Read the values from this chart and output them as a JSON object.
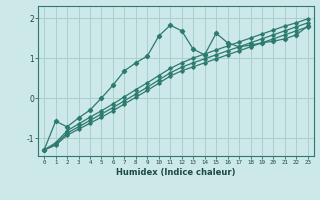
{
  "title": "",
  "xlabel": "Humidex (Indice chaleur)",
  "bg_color": "#cce8e8",
  "line_color": "#2d7a6e",
  "grid_color": "#aad0cc",
  "xlim": [
    -0.5,
    23.5
  ],
  "ylim": [
    -1.45,
    2.3
  ],
  "xticks": [
    0,
    1,
    2,
    3,
    4,
    5,
    6,
    7,
    8,
    9,
    10,
    11,
    12,
    13,
    14,
    15,
    16,
    17,
    18,
    19,
    20,
    21,
    22,
    23
  ],
  "yticks": [
    -1,
    0,
    1,
    2
  ],
  "curve1_x": [
    0,
    1,
    2,
    3,
    4,
    5,
    6,
    7,
    8,
    9,
    10,
    11,
    12,
    13,
    14,
    15,
    16,
    17,
    18,
    19,
    20,
    21,
    22,
    23
  ],
  "curve1_y": [
    -1.3,
    -0.58,
    -0.72,
    -0.5,
    -0.3,
    -0.0,
    0.32,
    0.68,
    0.88,
    1.05,
    1.55,
    1.82,
    1.68,
    1.22,
    1.08,
    1.62,
    1.38,
    1.28,
    1.32,
    1.38,
    1.42,
    1.48,
    1.58,
    1.8
  ],
  "curve2_x": [
    0,
    1,
    2,
    3,
    4,
    5,
    6,
    7,
    8,
    9,
    10,
    11,
    12,
    13,
    14,
    15,
    16,
    17,
    18,
    19,
    20,
    21,
    22,
    23
  ],
  "curve2_y": [
    -1.3,
    -1.12,
    -0.82,
    -0.65,
    -0.48,
    -0.32,
    -0.15,
    0.03,
    0.21,
    0.38,
    0.56,
    0.74,
    0.88,
    1.0,
    1.1,
    1.2,
    1.3,
    1.4,
    1.5,
    1.6,
    1.7,
    1.8,
    1.88,
    1.98
  ],
  "curve3_x": [
    0,
    1,
    2,
    3,
    4,
    5,
    6,
    7,
    8,
    9,
    10,
    11,
    12,
    13,
    14,
    15,
    16,
    17,
    18,
    19,
    20,
    21,
    22,
    23
  ],
  "curve3_y": [
    -1.3,
    -1.15,
    -0.88,
    -0.72,
    -0.56,
    -0.4,
    -0.24,
    -0.07,
    0.1,
    0.27,
    0.45,
    0.63,
    0.77,
    0.88,
    0.98,
    1.08,
    1.18,
    1.28,
    1.38,
    1.48,
    1.58,
    1.68,
    1.78,
    1.88
  ],
  "curve4_x": [
    0,
    1,
    2,
    3,
    4,
    5,
    6,
    7,
    8,
    9,
    10,
    11,
    12,
    13,
    14,
    15,
    16,
    17,
    18,
    19,
    20,
    21,
    22,
    23
  ],
  "curve4_y": [
    -1.3,
    -1.18,
    -0.93,
    -0.78,
    -0.63,
    -0.48,
    -0.32,
    -0.15,
    0.02,
    0.19,
    0.37,
    0.55,
    0.68,
    0.78,
    0.88,
    0.98,
    1.08,
    1.18,
    1.28,
    1.38,
    1.48,
    1.58,
    1.68,
    1.78
  ]
}
